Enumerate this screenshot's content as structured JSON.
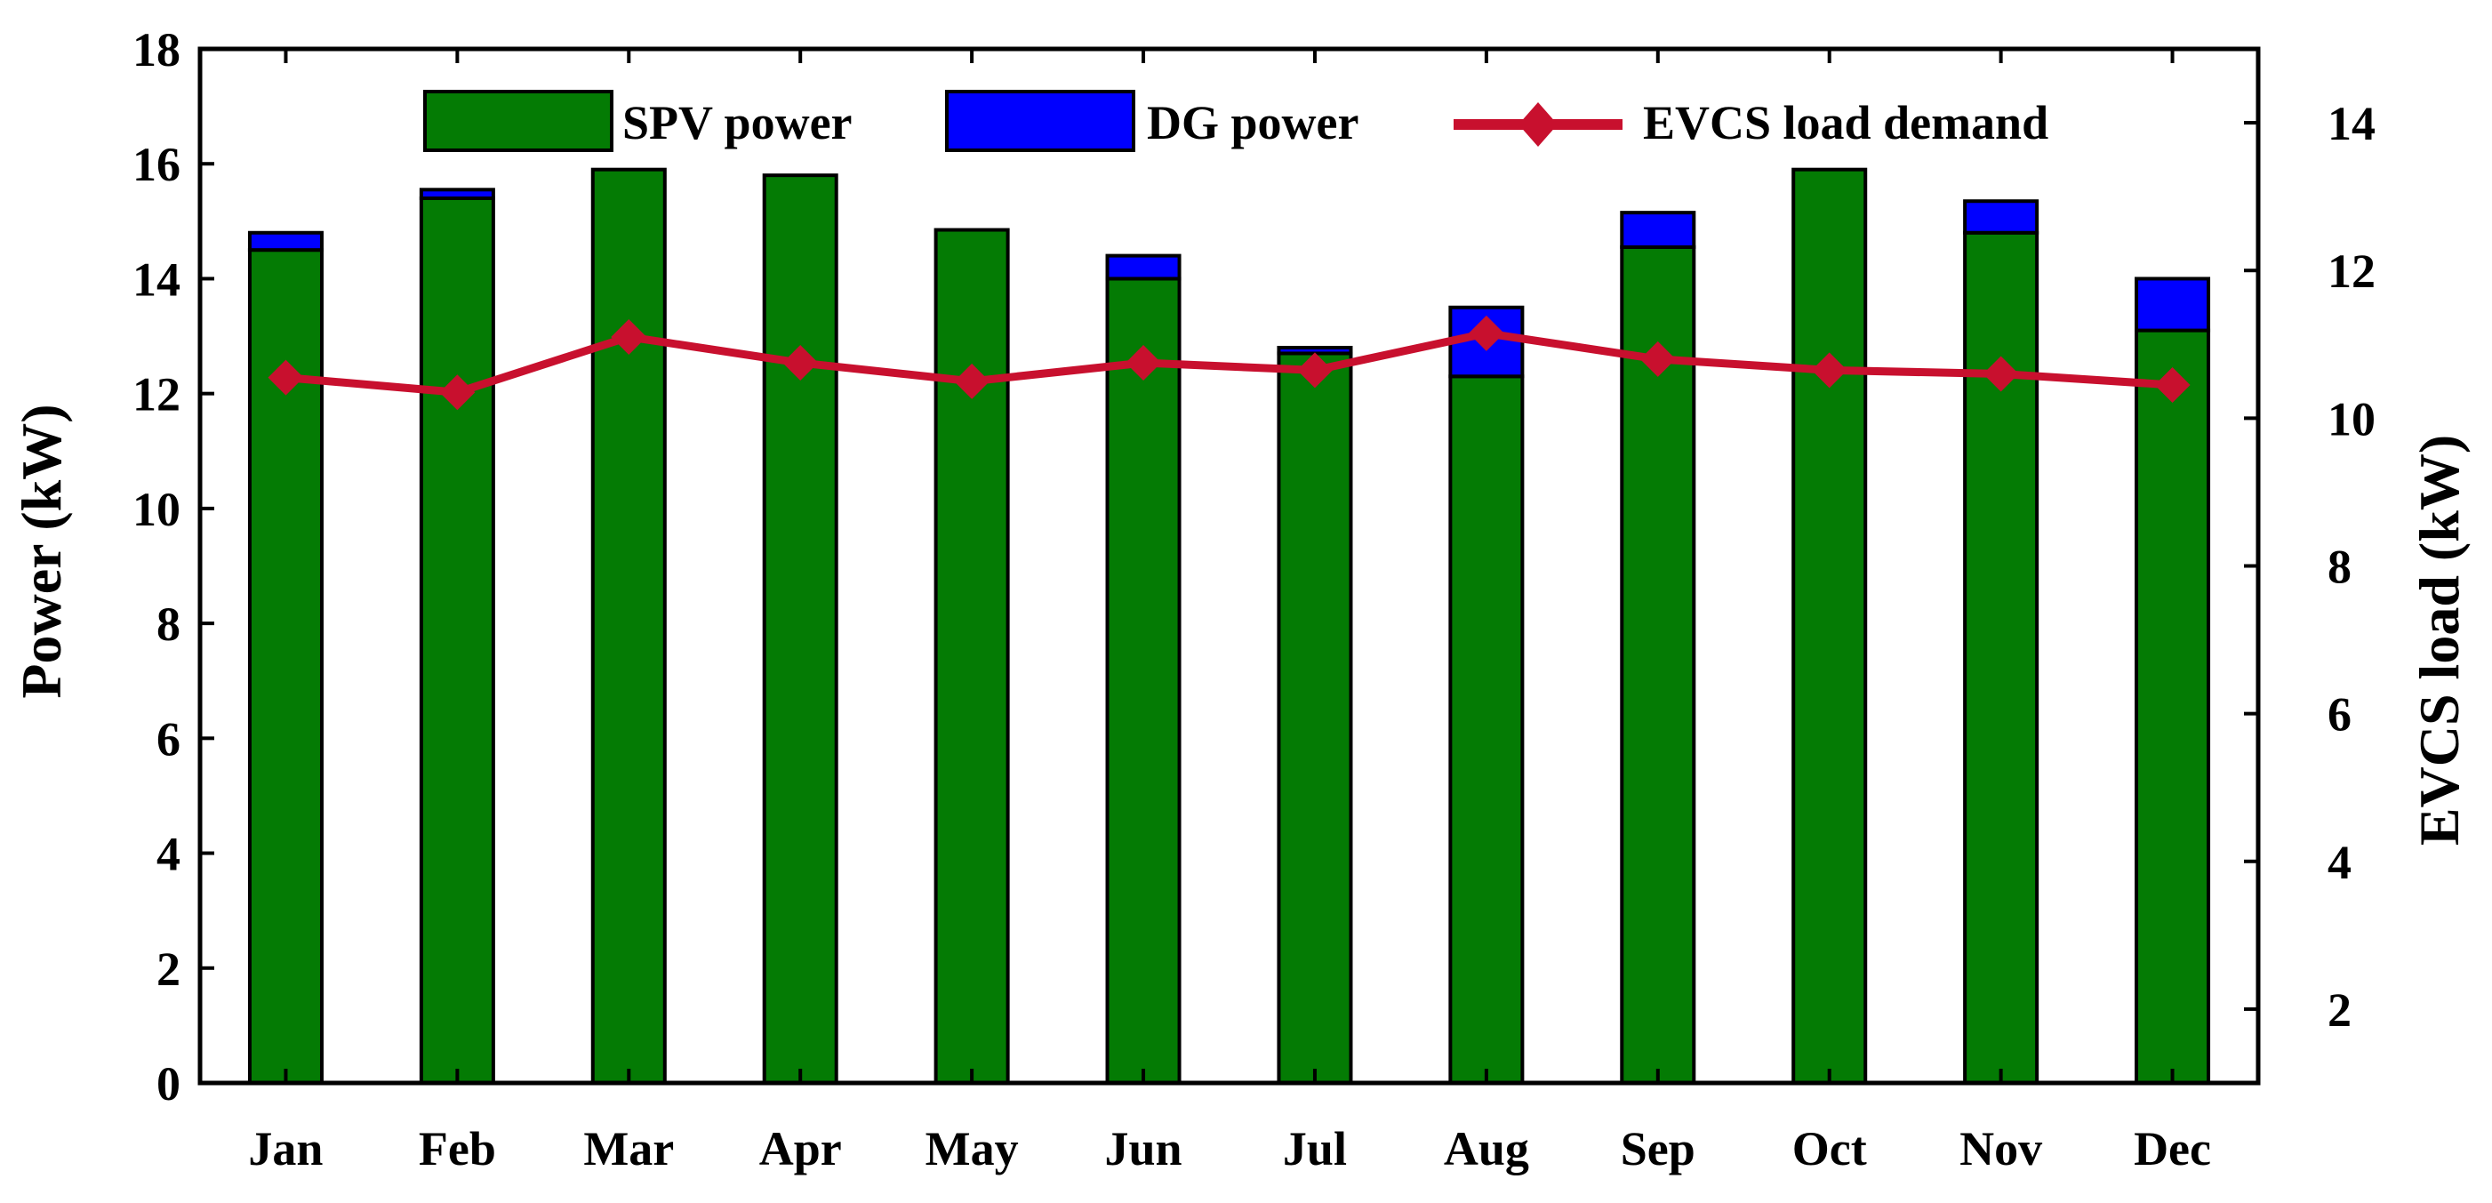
{
  "chart_data": {
    "type": "bar",
    "stacked": true,
    "title": "",
    "categories": [
      "Jan",
      "Feb",
      "Mar",
      "Apr",
      "May",
      "Jun",
      "Jul",
      "Aug",
      "Sep",
      "Oct",
      "Nov",
      "Dec"
    ],
    "series": [
      {
        "name": "SPV power",
        "kind": "bar",
        "axis": "left",
        "color": "#047B04",
        "values": [
          14.5,
          15.4,
          15.9,
          15.8,
          14.85,
          14.0,
          12.7,
          12.3,
          14.55,
          15.9,
          14.8,
          13.1
        ]
      },
      {
        "name": "DG power",
        "kind": "bar",
        "axis": "left",
        "color": "#0000FF",
        "values": [
          0.3,
          0.15,
          0.0,
          0.0,
          0.0,
          0.4,
          0.1,
          1.2,
          0.6,
          0.0,
          0.55,
          0.9
        ]
      },
      {
        "name": "EVCS load demand",
        "kind": "line",
        "axis": "right",
        "color": "#C8102E",
        "values": [
          10.55,
          10.35,
          11.1,
          10.75,
          10.5,
          10.75,
          10.65,
          11.15,
          10.8,
          10.65,
          10.6,
          10.45
        ]
      }
    ],
    "xlabel": "",
    "ylabel": "Power (kW)",
    "y2label": "EVCS load (kW)",
    "ylim": [
      0,
      18
    ],
    "y2lim": [
      1,
      15
    ],
    "yticks": [
      "0",
      "2",
      "4",
      "6",
      "8",
      "10",
      "12",
      "14",
      "16",
      "18"
    ],
    "y2ticks": [
      "2",
      "4",
      "6",
      "8",
      "10",
      "12",
      "14"
    ],
    "legend_position": "top",
    "grid": false
  }
}
